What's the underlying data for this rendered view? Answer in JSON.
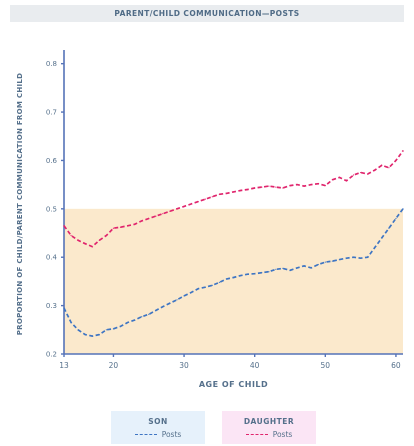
{
  "chart_data": {
    "type": "line",
    "title": "PARENT/CHILD COMMUNICATION—POSTS",
    "xlabel": "AGE OF CHILD",
    "ylabel": "PROPORTION OF CHILD/PARENT COMMUNICATION FROM CHILD",
    "xlim": [
      13,
      61
    ],
    "ylim": [
      0.2,
      0.82
    ],
    "x_ticks": [
      13,
      20,
      30,
      40,
      50,
      60
    ],
    "x_tick_labels": [
      "13",
      "20",
      "30",
      "40",
      "50",
      "60"
    ],
    "y_ticks": [
      0.2,
      0.3,
      0.4,
      0.5,
      0.6,
      0.7,
      0.8
    ],
    "y_tick_labels": [
      "0.2",
      "0.3",
      "0.4",
      "0.5",
      "0.6",
      "0.7",
      "0.8"
    ],
    "grid": false,
    "shaded_band": {
      "y_from": 0.2,
      "y_to": 0.5,
      "color": "#fbe9cc"
    },
    "series": [
      {
        "name": "SON",
        "legend_label": "Posts",
        "color": "#3e75c3",
        "line_style": "dashed",
        "points": [
          [
            13,
            0.295
          ],
          [
            14,
            0.265
          ],
          [
            15,
            0.25
          ],
          [
            16,
            0.24
          ],
          [
            17,
            0.237
          ],
          [
            18,
            0.24
          ],
          [
            19,
            0.25
          ],
          [
            20,
            0.252
          ],
          [
            21,
            0.257
          ],
          [
            22,
            0.265
          ],
          [
            23,
            0.27
          ],
          [
            24,
            0.277
          ],
          [
            25,
            0.282
          ],
          [
            26,
            0.29
          ],
          [
            27,
            0.298
          ],
          [
            28,
            0.305
          ],
          [
            29,
            0.312
          ],
          [
            30,
            0.32
          ],
          [
            31,
            0.327
          ],
          [
            32,
            0.335
          ],
          [
            33,
            0.338
          ],
          [
            34,
            0.342
          ],
          [
            35,
            0.348
          ],
          [
            36,
            0.355
          ],
          [
            37,
            0.358
          ],
          [
            38,
            0.362
          ],
          [
            39,
            0.365
          ],
          [
            40,
            0.366
          ],
          [
            41,
            0.368
          ],
          [
            42,
            0.37
          ],
          [
            43,
            0.375
          ],
          [
            44,
            0.377
          ],
          [
            45,
            0.373
          ],
          [
            46,
            0.378
          ],
          [
            47,
            0.382
          ],
          [
            48,
            0.378
          ],
          [
            49,
            0.385
          ],
          [
            50,
            0.39
          ],
          [
            51,
            0.392
          ],
          [
            52,
            0.395
          ],
          [
            53,
            0.398
          ],
          [
            54,
            0.4
          ],
          [
            55,
            0.398
          ],
          [
            56,
            0.4
          ],
          [
            57,
            0.42
          ],
          [
            58,
            0.44
          ],
          [
            59,
            0.46
          ],
          [
            60,
            0.48
          ],
          [
            61,
            0.5
          ]
        ]
      },
      {
        "name": "DAUGHTER",
        "legend_label": "Posts",
        "color": "#e0256d",
        "line_style": "dashed",
        "points": [
          [
            13,
            0.465
          ],
          [
            14,
            0.445
          ],
          [
            15,
            0.435
          ],
          [
            16,
            0.428
          ],
          [
            17,
            0.422
          ],
          [
            18,
            0.435
          ],
          [
            19,
            0.445
          ],
          [
            20,
            0.46
          ],
          [
            21,
            0.462
          ],
          [
            22,
            0.465
          ],
          [
            23,
            0.468
          ],
          [
            24,
            0.475
          ],
          [
            25,
            0.48
          ],
          [
            26,
            0.485
          ],
          [
            27,
            0.49
          ],
          [
            28,
            0.495
          ],
          [
            29,
            0.5
          ],
          [
            30,
            0.505
          ],
          [
            31,
            0.51
          ],
          [
            32,
            0.515
          ],
          [
            33,
            0.52
          ],
          [
            34,
            0.525
          ],
          [
            35,
            0.53
          ],
          [
            36,
            0.532
          ],
          [
            37,
            0.535
          ],
          [
            38,
            0.538
          ],
          [
            39,
            0.54
          ],
          [
            40,
            0.543
          ],
          [
            41,
            0.545
          ],
          [
            42,
            0.547
          ],
          [
            43,
            0.545
          ],
          [
            44,
            0.543
          ],
          [
            45,
            0.548
          ],
          [
            46,
            0.55
          ],
          [
            47,
            0.547
          ],
          [
            48,
            0.55
          ],
          [
            49,
            0.552
          ],
          [
            50,
            0.548
          ],
          [
            51,
            0.56
          ],
          [
            52,
            0.565
          ],
          [
            53,
            0.558
          ],
          [
            54,
            0.57
          ],
          [
            55,
            0.575
          ],
          [
            56,
            0.572
          ],
          [
            57,
            0.58
          ],
          [
            58,
            0.59
          ],
          [
            59,
            0.585
          ],
          [
            60,
            0.6
          ],
          [
            61,
            0.62
          ]
        ]
      }
    ]
  }
}
